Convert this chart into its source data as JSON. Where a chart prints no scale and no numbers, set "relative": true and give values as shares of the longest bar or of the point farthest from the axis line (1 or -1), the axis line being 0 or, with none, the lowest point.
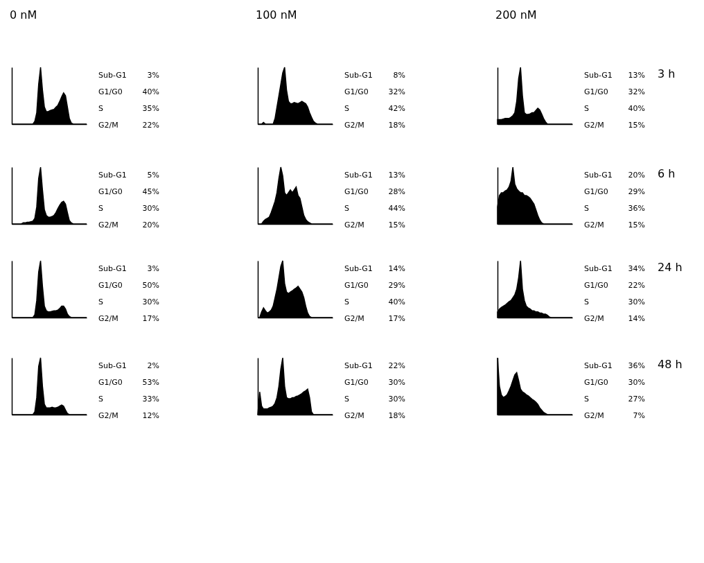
{
  "chart_data": [
    {
      "type": "area",
      "title": "0 nM",
      "relative": true,
      "color": "#000000",
      "categories": [
        null,
        null,
        null,
        null,
        null,
        null,
        null,
        null,
        null,
        null,
        null,
        null,
        null,
        null,
        null,
        null,
        null,
        null,
        null,
        null,
        null,
        null,
        null,
        null,
        null,
        null,
        null,
        null,
        null,
        null,
        null,
        null,
        null,
        null,
        null,
        null,
        null,
        null,
        null,
        null
      ],
      "values": [
        0,
        0,
        0,
        0,
        0,
        0,
        0,
        0,
        0,
        0,
        0,
        0,
        0.05,
        0.2,
        0.7,
        1.0,
        0.6,
        0.3,
        0.22,
        0.22,
        0.24,
        0.25,
        0.26,
        0.3,
        0.33,
        0.4,
        0.48,
        0.55,
        0.5,
        0.3,
        0.1,
        0.02,
        0,
        0,
        0,
        0,
        0,
        0,
        0,
        0
      ],
      "annotations": [
        "Sub-G1",
        "3%",
        "G1/G0",
        "40%",
        "S",
        "35%",
        "G2/M",
        "22%"
      ]
    },
    {
      "type": "area",
      "title": "100 nM",
      "relative": true,
      "color": "#000000",
      "categories": [
        null,
        null,
        null,
        null,
        null,
        null,
        null,
        null,
        null,
        null,
        null,
        null,
        null,
        null,
        null,
        null,
        null,
        null,
        null,
        null,
        null,
        null,
        null,
        null,
        null,
        null,
        null,
        null,
        null,
        null,
        null,
        null,
        null,
        null,
        null,
        null,
        null,
        null,
        null,
        null
      ],
      "values": [
        0,
        0,
        0,
        0.03,
        0,
        0,
        0,
        0,
        0,
        0.1,
        0.3,
        0.5,
        0.7,
        0.9,
        1.0,
        0.6,
        0.4,
        0.36,
        0.36,
        0.38,
        0.37,
        0.36,
        0.38,
        0.4,
        0.38,
        0.36,
        0.3,
        0.2,
        0.12,
        0.05,
        0.02,
        0,
        0,
        0,
        0,
        0,
        0,
        0,
        0,
        0
      ],
      "annotations": [
        "Sub-G1",
        "8%",
        "G1/G0",
        "32%",
        "S",
        "42%",
        "G2/M",
        "18%"
      ]
    },
    {
      "type": "area",
      "title": "200 nM",
      "y2label": "3 h",
      "relative": true,
      "color": "#000000",
      "categories": [
        null,
        null,
        null,
        null,
        null,
        null,
        null,
        null,
        null,
        null,
        null,
        null,
        null,
        null,
        null,
        null,
        null,
        null,
        null,
        null,
        null,
        null,
        null,
        null,
        null,
        null,
        null,
        null,
        null,
        null,
        null,
        null,
        null,
        null,
        null,
        null,
        null,
        null,
        null,
        null
      ],
      "values": [
        0.08,
        0.08,
        0.08,
        0.09,
        0.1,
        0.1,
        0.1,
        0.12,
        0.15,
        0.2,
        0.4,
        0.8,
        1.0,
        0.5,
        0.2,
        0.17,
        0.17,
        0.18,
        0.2,
        0.2,
        0.24,
        0.28,
        0.25,
        0.18,
        0.1,
        0.04,
        0,
        0,
        0,
        0,
        0,
        0,
        0,
        0,
        0,
        0,
        0,
        0,
        0,
        0
      ],
      "annotations": [
        "Sub-G1",
        "13%",
        "G1/G0",
        "32%",
        "S",
        "40%",
        "G2/M",
        "15%"
      ]
    },
    {
      "type": "area",
      "relative": true,
      "color": "#000000",
      "categories": [
        null,
        null,
        null,
        null,
        null,
        null,
        null,
        null,
        null,
        null,
        null,
        null,
        null,
        null,
        null,
        null,
        null,
        null,
        null,
        null,
        null,
        null,
        null,
        null,
        null,
        null,
        null,
        null,
        null,
        null,
        null,
        null,
        null,
        null,
        null,
        null,
        null,
        null,
        null,
        null
      ],
      "values": [
        0,
        0,
        0,
        0,
        0,
        0,
        0.02,
        0.02,
        0.03,
        0.03,
        0.04,
        0.05,
        0.1,
        0.3,
        0.8,
        1.0,
        0.6,
        0.25,
        0.15,
        0.12,
        0.12,
        0.13,
        0.15,
        0.2,
        0.27,
        0.33,
        0.38,
        0.4,
        0.35,
        0.2,
        0.06,
        0.02,
        0,
        0,
        0,
        0,
        0,
        0,
        0,
        0
      ],
      "annotations": [
        "Sub-G1",
        "5%",
        "G1/G0",
        "45%",
        "S",
        "30%",
        "G2/M",
        "20%"
      ]
    },
    {
      "type": "area",
      "relative": true,
      "color": "#000000",
      "categories": [
        null,
        null,
        null,
        null,
        null,
        null,
        null,
        null,
        null,
        null,
        null,
        null,
        null,
        null,
        null,
        null,
        null,
        null,
        null,
        null,
        null,
        null,
        null,
        null,
        null,
        null,
        null,
        null,
        null,
        null,
        null,
        null,
        null,
        null,
        null,
        null,
        null,
        null,
        null,
        null
      ],
      "values": [
        0,
        0,
        0,
        0.05,
        0.08,
        0.1,
        0.12,
        0.2,
        0.3,
        0.4,
        0.55,
        0.8,
        1.0,
        0.85,
        0.55,
        0.5,
        0.55,
        0.6,
        0.55,
        0.6,
        0.65,
        0.5,
        0.45,
        0.3,
        0.15,
        0.08,
        0.04,
        0.02,
        0,
        0,
        0,
        0,
        0,
        0,
        0,
        0,
        0,
        0,
        0,
        0
      ],
      "annotations": [
        "Sub-G1",
        "13%",
        "G1/G0",
        "28%",
        "S",
        "44%",
        "G2/M",
        "15%"
      ]
    },
    {
      "type": "area",
      "y2label": "6 h",
      "relative": true,
      "color": "#000000",
      "categories": [
        null,
        null,
        null,
        null,
        null,
        null,
        null,
        null,
        null,
        null,
        null,
        null,
        null,
        null,
        null,
        null,
        null,
        null,
        null,
        null,
        null,
        null,
        null,
        null,
        null,
        null,
        null,
        null,
        null,
        null,
        null,
        null,
        null,
        null,
        null,
        null,
        null,
        null,
        null,
        null
      ],
      "values": [
        0.3,
        0.5,
        0.55,
        0.55,
        0.58,
        0.6,
        0.65,
        0.75,
        1.0,
        0.7,
        0.62,
        0.58,
        0.55,
        0.55,
        0.5,
        0.5,
        0.48,
        0.45,
        0.4,
        0.35,
        0.25,
        0.15,
        0.07,
        0.02,
        0,
        0,
        0,
        0,
        0,
        0,
        0,
        0,
        0,
        0,
        0,
        0,
        0,
        0,
        0,
        0
      ],
      "annotations": [
        "Sub-G1",
        "20%",
        "G1/G0",
        "29%",
        "S",
        "36%",
        "G2/M",
        "15%"
      ]
    },
    {
      "type": "area",
      "relative": true,
      "color": "#000000",
      "categories": [
        null,
        null,
        null,
        null,
        null,
        null,
        null,
        null,
        null,
        null,
        null,
        null,
        null,
        null,
        null,
        null,
        null,
        null,
        null,
        null,
        null,
        null,
        null,
        null,
        null,
        null,
        null,
        null,
        null,
        null,
        null,
        null,
        null,
        null,
        null,
        null,
        null,
        null,
        null,
        null
      ],
      "values": [
        0,
        0,
        0,
        0,
        0,
        0,
        0,
        0,
        0,
        0,
        0,
        0,
        0.05,
        0.3,
        0.8,
        1.0,
        0.55,
        0.2,
        0.12,
        0.1,
        0.1,
        0.11,
        0.12,
        0.12,
        0.13,
        0.16,
        0.2,
        0.2,
        0.15,
        0.06,
        0.02,
        0,
        0,
        0,
        0,
        0,
        0,
        0,
        0,
        0
      ],
      "annotations": [
        "Sub-G1",
        "3%",
        "G1/G0",
        "50%",
        "S",
        "30%",
        "G2/M",
        "17%"
      ]
    },
    {
      "type": "area",
      "relative": true,
      "color": "#000000",
      "categories": [
        null,
        null,
        null,
        null,
        null,
        null,
        null,
        null,
        null,
        null,
        null,
        null,
        null,
        null,
        null,
        null,
        null,
        null,
        null,
        null,
        null,
        null,
        null,
        null,
        null,
        null,
        null,
        null,
        null,
        null,
        null,
        null,
        null,
        null,
        null,
        null,
        null,
        null,
        null,
        null
      ],
      "values": [
        0,
        0,
        0.1,
        0.17,
        0.12,
        0.08,
        0.1,
        0.13,
        0.2,
        0.35,
        0.5,
        0.7,
        0.9,
        1.0,
        0.6,
        0.45,
        0.42,
        0.45,
        0.47,
        0.5,
        0.52,
        0.55,
        0.5,
        0.45,
        0.35,
        0.2,
        0.08,
        0.02,
        0,
        0,
        0,
        0,
        0,
        0,
        0,
        0,
        0,
        0,
        0,
        0
      ],
      "annotations": [
        "Sub-G1",
        "14%",
        "G1/G0",
        "29%",
        "S",
        "40%",
        "G2/M",
        "17%"
      ]
    },
    {
      "type": "area",
      "y2label": "24 h",
      "relative": true,
      "color": "#000000",
      "categories": [
        null,
        null,
        null,
        null,
        null,
        null,
        null,
        null,
        null,
        null,
        null,
        null,
        null,
        null,
        null,
        null,
        null,
        null,
        null,
        null,
        null,
        null,
        null,
        null,
        null,
        null,
        null,
        null,
        null,
        null,
        null,
        null,
        null,
        null,
        null,
        null,
        null,
        null,
        null,
        null
      ],
      "values": [
        0.1,
        0.15,
        0.18,
        0.2,
        0.22,
        0.25,
        0.28,
        0.3,
        0.35,
        0.4,
        0.5,
        0.7,
        1.0,
        0.5,
        0.3,
        0.2,
        0.17,
        0.15,
        0.12,
        0.12,
        0.1,
        0.1,
        0.08,
        0.08,
        0.06,
        0.06,
        0.04,
        0.01,
        0,
        0,
        0,
        0,
        0,
        0,
        0,
        0,
        0,
        0,
        0,
        0
      ],
      "annotations": [
        "Sub-G1",
        "34%",
        "G1/G0",
        "22%",
        "S",
        "30%",
        "G2/M",
        "14%"
      ]
    },
    {
      "type": "area",
      "relative": true,
      "color": "#000000",
      "categories": [
        null,
        null,
        null,
        null,
        null,
        null,
        null,
        null,
        null,
        null,
        null,
        null,
        null,
        null,
        null,
        null,
        null,
        null,
        null,
        null,
        null,
        null,
        null,
        null,
        null,
        null,
        null,
        null,
        null,
        null,
        null,
        null,
        null,
        null,
        null,
        null,
        null,
        null,
        null,
        null
      ],
      "values": [
        0,
        0,
        0,
        0,
        0,
        0,
        0,
        0,
        0,
        0,
        0,
        0,
        0.05,
        0.3,
        0.85,
        1.0,
        0.5,
        0.18,
        0.12,
        0.12,
        0.12,
        0.13,
        0.12,
        0.12,
        0.13,
        0.15,
        0.17,
        0.15,
        0.08,
        0.02,
        0,
        0,
        0,
        0,
        0,
        0,
        0,
        0,
        0,
        0
      ],
      "annotations": [
        "Sub-G1",
        "2%",
        "G1/G0",
        "53%",
        "S",
        "33%",
        "G2/M",
        "12%"
      ]
    },
    {
      "type": "area",
      "relative": true,
      "color": "#000000",
      "categories": [
        null,
        null,
        null,
        null,
        null,
        null,
        null,
        null,
        null,
        null,
        null,
        null,
        null,
        null,
        null,
        null,
        null,
        null,
        null,
        null,
        null,
        null,
        null,
        null,
        null,
        null,
        null,
        null,
        null,
        null,
        null,
        null,
        null,
        null,
        null,
        null,
        null,
        null,
        null,
        null
      ],
      "values": [
        0,
        0.4,
        0.15,
        0.1,
        0.1,
        0.1,
        0.12,
        0.13,
        0.15,
        0.2,
        0.3,
        0.5,
        0.8,
        1.0,
        0.5,
        0.3,
        0.28,
        0.28,
        0.3,
        0.3,
        0.32,
        0.33,
        0.35,
        0.37,
        0.4,
        0.42,
        0.45,
        0.3,
        0.05,
        0,
        0,
        0,
        0,
        0,
        0,
        0,
        0,
        0,
        0,
        0
      ],
      "annotations": [
        "Sub-G1",
        "22%",
        "G1/G0",
        "30%",
        "S",
        "30%",
        "G2/M",
        "18%"
      ]
    },
    {
      "type": "area",
      "y2label": "48 h",
      "relative": true,
      "color": "#000000",
      "categories": [
        null,
        null,
        null,
        null,
        null,
        null,
        null,
        null,
        null,
        null,
        null,
        null,
        null,
        null,
        null,
        null,
        null,
        null,
        null,
        null,
        null,
        null,
        null,
        null,
        null,
        null,
        null,
        null,
        null,
        null,
        null,
        null,
        null,
        null,
        null,
        null,
        null,
        null,
        null,
        null
      ],
      "values": [
        1.0,
        0.5,
        0.35,
        0.3,
        0.32,
        0.35,
        0.42,
        0.5,
        0.6,
        0.7,
        0.74,
        0.6,
        0.45,
        0.4,
        0.38,
        0.35,
        0.33,
        0.3,
        0.27,
        0.25,
        0.22,
        0.18,
        0.12,
        0.08,
        0.04,
        0.02,
        0,
        0,
        0,
        0,
        0,
        0,
        0,
        0,
        0,
        0,
        0,
        0,
        0,
        0
      ],
      "annotations": [
        "Sub-G1",
        "36%",
        "G1/G0",
        "30%",
        "S",
        "27%",
        "G2/M",
        "7%"
      ]
    }
  ]
}
